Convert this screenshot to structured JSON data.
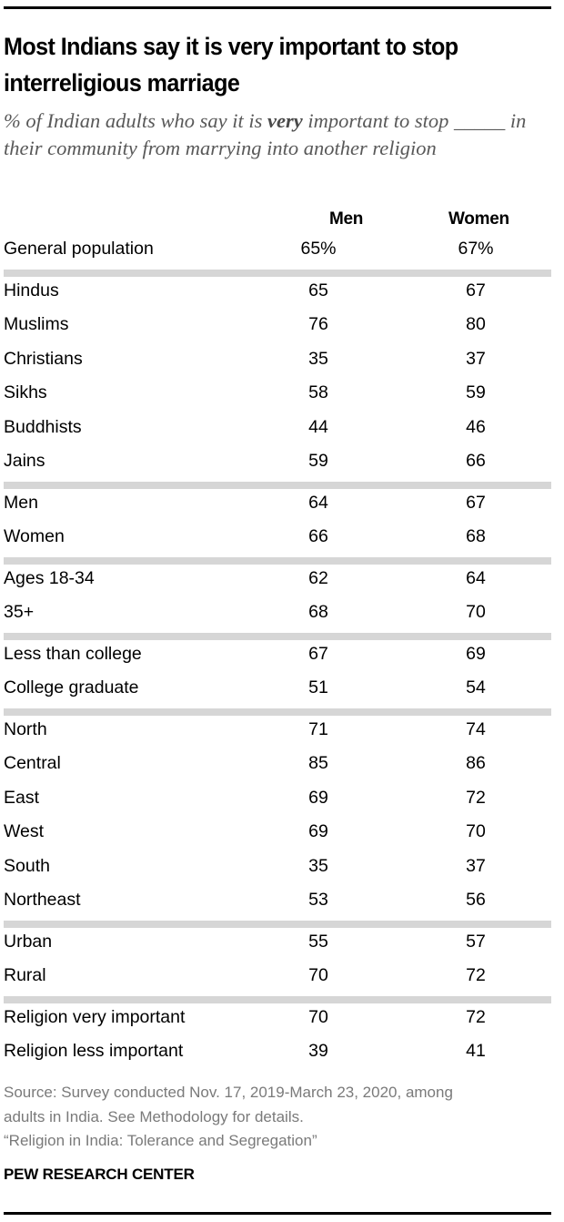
{
  "title": "Most Indians say it is very important to stop interreligious marriage",
  "subtitle": {
    "prefix": "% of Indian adults who say it is ",
    "emphasis": "very",
    "suffix": " important to stop _____ in their community from marrying into another religion"
  },
  "columns": {
    "men": "Men",
    "women": "Women"
  },
  "groups": [
    {
      "rows": [
        {
          "label": "General population",
          "men": "65%",
          "women": "67%"
        }
      ]
    },
    {
      "rows": [
        {
          "label": "Hindus",
          "men": "65",
          "women": "67"
        },
        {
          "label": "Muslims",
          "men": "76",
          "women": "80"
        },
        {
          "label": "Christians",
          "men": "35",
          "women": "37"
        },
        {
          "label": "Sikhs",
          "men": "58",
          "women": "59"
        },
        {
          "label": "Buddhists",
          "men": "44",
          "women": "46"
        },
        {
          "label": "Jains",
          "men": "59",
          "women": "66"
        }
      ]
    },
    {
      "rows": [
        {
          "label": "Men",
          "men": "64",
          "women": "67"
        },
        {
          "label": "Women",
          "men": "66",
          "women": "68"
        }
      ]
    },
    {
      "rows": [
        {
          "label": "Ages 18-34",
          "men": "62",
          "women": "64"
        },
        {
          "label": "35+",
          "men": "68",
          "women": "70"
        }
      ]
    },
    {
      "rows": [
        {
          "label": "Less than college",
          "men": "67",
          "women": "69"
        },
        {
          "label": "College graduate",
          "men": "51",
          "women": "54"
        }
      ]
    },
    {
      "rows": [
        {
          "label": "North",
          "men": "71",
          "women": "74"
        },
        {
          "label": "Central",
          "men": "85",
          "women": "86"
        },
        {
          "label": "East",
          "men": "69",
          "women": "72"
        },
        {
          "label": "West",
          "men": "69",
          "women": "70"
        },
        {
          "label": "South",
          "men": "35",
          "women": "37"
        },
        {
          "label": "Northeast",
          "men": "53",
          "women": "56"
        }
      ]
    },
    {
      "rows": [
        {
          "label": "Urban",
          "men": "55",
          "women": "57"
        },
        {
          "label": "Rural",
          "men": "70",
          "women": "72"
        }
      ]
    },
    {
      "rows": [
        {
          "label": "Religion very important",
          "men": "70",
          "women": "72"
        },
        {
          "label": "Religion less important",
          "men": "39",
          "women": "41"
        }
      ]
    }
  ],
  "footer": {
    "source_line1": "Source: Survey conducted Nov. 17, 2019-March 23, 2020, among",
    "source_line2": "adults in India. See Methodology for details.",
    "source_line3": "“Religion in India: Tolerance and Segregation”",
    "brand": "PEW RESEARCH CENTER"
  },
  "colors": {
    "separator": "#d6d6d6",
    "subtitle": "#595959",
    "source": "#7a7a7a",
    "rule": "#000000"
  },
  "chart_data": {
    "type": "table",
    "title": "Most Indians say it is very important to stop interreligious marriage",
    "subtitle": "% of Indian adults who say it is very important to stop _____ in their community from marrying into another religion",
    "columns": [
      "Men",
      "Women"
    ],
    "categories": [
      "General population",
      "Hindus",
      "Muslims",
      "Christians",
      "Sikhs",
      "Buddhists",
      "Jains",
      "Men",
      "Women",
      "Ages 18-34",
      "35+",
      "Less than college",
      "College graduate",
      "North",
      "Central",
      "East",
      "West",
      "South",
      "Northeast",
      "Urban",
      "Rural",
      "Religion very important",
      "Religion less important"
    ],
    "series": [
      {
        "name": "Men",
        "values": [
          65,
          65,
          76,
          35,
          58,
          44,
          59,
          64,
          66,
          62,
          68,
          67,
          51,
          71,
          85,
          69,
          69,
          35,
          53,
          55,
          70,
          70,
          39
        ]
      },
      {
        "name": "Women",
        "values": [
          67,
          67,
          80,
          37,
          59,
          46,
          66,
          67,
          68,
          64,
          70,
          69,
          54,
          74,
          86,
          72,
          70,
          37,
          56,
          57,
          72,
          72,
          41
        ]
      }
    ],
    "unit": "%",
    "source": "Source: Survey conducted Nov. 17, 2019-March 23, 2020, among adults in India. See Methodology for details. “Religion in India: Tolerance and Segregation”",
    "credit": "PEW RESEARCH CENTER"
  }
}
